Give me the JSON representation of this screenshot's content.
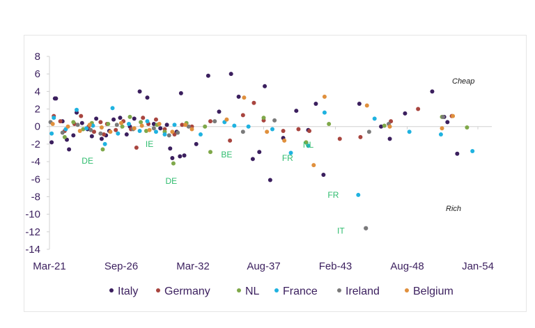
{
  "chart_data": {
    "type": "scatter",
    "title": "",
    "xlabel": "",
    "ylabel": "",
    "x_tick_labels": [
      "Mar-21",
      "Sep-26",
      "Mar-32",
      "Aug-37",
      "Feb-43",
      "Aug-48",
      "Jan-54"
    ],
    "x_ticks": [
      "2021-03",
      "2026-09",
      "2032-03",
      "2037-08",
      "2043-02",
      "2048-08",
      "2054-01"
    ],
    "xlim": [
      "2021-03",
      "2054-01"
    ],
    "ylim": [
      -14,
      8
    ],
    "y_ticks": [
      8,
      6,
      4,
      2,
      0,
      -2,
      -4,
      -6,
      -8,
      -10,
      -12,
      -14
    ],
    "grid": false,
    "legend_position": "bottom",
    "notes": {
      "cheap": "Cheap",
      "rich": "Rich"
    },
    "annotations": [
      {
        "text": "DE",
        "x": "2024-02",
        "y": -3.9
      },
      {
        "text": "IE",
        "x": "2028-11",
        "y": -2.0
      },
      {
        "text": "DE",
        "x": "2030-07",
        "y": -6.2
      },
      {
        "text": "BE",
        "x": "2034-10",
        "y": -3.2
      },
      {
        "text": "FR",
        "x": "2039-06",
        "y": -3.6
      },
      {
        "text": "NL",
        "x": "2041-01",
        "y": -2.1
      },
      {
        "text": "FR",
        "x": "2042-12",
        "y": -7.8
      },
      {
        "text": "IT",
        "x": "2043-07",
        "y": -11.9
      }
    ],
    "series": [
      {
        "name": "Italy",
        "color": "#3b1f5e",
        "points": [
          [
            "2021-05",
            -1.8
          ],
          [
            "2021-08",
            3.2
          ],
          [
            "2021-09",
            3.2
          ],
          [
            "2022-03",
            0.6
          ],
          [
            "2022-07",
            -1.5
          ],
          [
            "2022-09",
            -2.6
          ],
          [
            "2023-01",
            -1.0
          ],
          [
            "2023-04",
            1.6
          ],
          [
            "2023-09",
            0.4
          ],
          [
            "2024-02",
            -0.3
          ],
          [
            "2024-06",
            -1.1
          ],
          [
            "2024-10",
            0.9
          ],
          [
            "2025-03",
            -1.4
          ],
          [
            "2025-07",
            -1.0
          ],
          [
            "2025-10",
            -0.5
          ],
          [
            "2026-02",
            0.8
          ],
          [
            "2026-08",
            1.0
          ],
          [
            "2027-02",
            -0.9
          ],
          [
            "2027-05",
            0.0
          ],
          [
            "2027-09",
            0.9
          ],
          [
            "2028-02",
            4.0
          ],
          [
            "2028-09",
            3.3
          ],
          [
            "2029-03",
            0.3
          ],
          [
            "2029-09",
            -0.2
          ],
          [
            "2030-03",
            0.2
          ],
          [
            "2030-06",
            -2.5
          ],
          [
            "2030-08",
            -3.6
          ],
          [
            "2030-12",
            -0.6
          ],
          [
            "2031-03",
            -3.4
          ],
          [
            "2031-04",
            3.8
          ],
          [
            "2031-07",
            -3.3
          ],
          [
            "2032-06",
            -2.0
          ],
          [
            "2033-05",
            5.8
          ],
          [
            "2034-03",
            1.7
          ],
          [
            "2035-02",
            6.0
          ],
          [
            "2035-09",
            3.4
          ],
          [
            "2036-10",
            -3.7
          ],
          [
            "2037-04",
            -2.9
          ],
          [
            "2037-09",
            4.6
          ],
          [
            "2038-02",
            -6.1
          ],
          [
            "2039-02",
            -1.3
          ],
          [
            "2040-02",
            1.8
          ],
          [
            "2041-01",
            -0.4
          ],
          [
            "2041-08",
            2.6
          ],
          [
            "2042-03",
            -5.5
          ],
          [
            "2044-12",
            2.6
          ],
          [
            "2045-06",
            -11.6
          ],
          [
            "2046-08",
            0.0
          ],
          [
            "2047-04",
            -1.4
          ],
          [
            "2048-06",
            1.5
          ],
          [
            "2050-07",
            4.0
          ],
          [
            "2051-06",
            1.1
          ],
          [
            "2051-09",
            0.5
          ],
          [
            "2052-06",
            -3.1
          ]
        ]
      },
      {
        "name": "Germany",
        "color": "#a8453f",
        "points": [
          [
            "2021-07",
            1.2
          ],
          [
            "2022-01",
            0.6
          ],
          [
            "2022-05",
            -0.5
          ],
          [
            "2023-02",
            0.3
          ],
          [
            "2023-08",
            1.2
          ],
          [
            "2024-03",
            0.0
          ],
          [
            "2024-08",
            -0.6
          ],
          [
            "2025-02",
            0.5
          ],
          [
            "2025-05",
            -0.9
          ],
          [
            "2025-08",
            0.3
          ],
          [
            "2026-04",
            -0.4
          ],
          [
            "2026-11",
            0.6
          ],
          [
            "2027-06",
            -0.3
          ],
          [
            "2027-11",
            -2.4
          ],
          [
            "2028-05",
            1.0
          ],
          [
            "2028-10",
            0.3
          ],
          [
            "2029-05",
            0.8
          ],
          [
            "2030-01",
            -0.3
          ],
          [
            "2030-10",
            -0.9
          ],
          [
            "2031-05",
            0.2
          ],
          [
            "2032-02",
            0.0
          ],
          [
            "2033-07",
            0.6
          ],
          [
            "2035-01",
            -1.6
          ],
          [
            "2036-01",
            1.3
          ],
          [
            "2036-11",
            2.7
          ],
          [
            "2037-08",
            0.7
          ],
          [
            "2039-02",
            -0.5
          ],
          [
            "2040-04",
            -0.3
          ],
          [
            "2041-02",
            -0.5
          ],
          [
            "2043-06",
            -1.4
          ],
          [
            "2045-01",
            -1.2
          ],
          [
            "2047-05",
            0.6
          ],
          [
            "2049-06",
            2.0
          ],
          [
            "2052-01",
            1.2
          ]
        ]
      },
      {
        "name": "NL",
        "color": "#7fa84a",
        "points": [
          [
            "2022-05",
            -1.2
          ],
          [
            "2023-01",
            0.5
          ],
          [
            "2023-10",
            -0.3
          ],
          [
            "2024-06",
            0.4
          ],
          [
            "2025-04",
            -2.6
          ],
          [
            "2025-09",
            0.3
          ],
          [
            "2026-10",
            0.0
          ],
          [
            "2027-05",
            1.1
          ],
          [
            "2028-03",
            0.5
          ],
          [
            "2028-08",
            -0.5
          ],
          [
            "2029-06",
            0.2
          ],
          [
            "2030-01",
            -0.6
          ],
          [
            "2030-09",
            -4.2
          ],
          [
            "2031-09",
            0.4
          ],
          [
            "2033-02",
            0.0
          ],
          [
            "2033-07",
            -2.9
          ],
          [
            "2037-08",
            1.0
          ],
          [
            "2040-11",
            -1.8
          ],
          [
            "2042-08",
            0.3
          ],
          [
            "2046-11",
            0.1
          ],
          [
            "2051-04",
            1.1
          ],
          [
            "2053-03",
            -0.1
          ]
        ]
      },
      {
        "name": "France",
        "color": "#1fb2e0",
        "points": [
          [
            "2021-05",
            -0.8
          ],
          [
            "2021-07",
            1.0
          ],
          [
            "2022-06",
            -0.3
          ],
          [
            "2023-04",
            1.9
          ],
          [
            "2024-01",
            -0.2
          ],
          [
            "2024-07",
            0.1
          ],
          [
            "2025-06",
            -2.0
          ],
          [
            "2026-01",
            2.1
          ],
          [
            "2026-06",
            -0.8
          ],
          [
            "2027-04",
            0.3
          ],
          [
            "2028-02",
            -0.5
          ],
          [
            "2028-09",
            0.6
          ],
          [
            "2029-05",
            -0.6
          ],
          [
            "2030-01",
            -0.9
          ],
          [
            "2030-10",
            0.2
          ],
          [
            "2032-10",
            -0.9
          ],
          [
            "2034-08",
            0.5
          ],
          [
            "2035-05",
            0.1
          ],
          [
            "2036-06",
            0.0
          ],
          [
            "2038-04",
            -0.3
          ],
          [
            "2039-09",
            -3.0
          ],
          [
            "2041-01",
            -2.2
          ],
          [
            "2042-04",
            1.6
          ],
          [
            "2044-11",
            -7.8
          ],
          [
            "2046-02",
            0.9
          ],
          [
            "2048-10",
            -0.6
          ],
          [
            "2051-03",
            -0.9
          ],
          [
            "2053-08",
            -2.8
          ]
        ]
      },
      {
        "name": "Ireland",
        "color": "#7a7a7a",
        "points": [
          [
            "2021-04",
            0.5
          ],
          [
            "2022-03",
            -0.7
          ],
          [
            "2023-05",
            0.2
          ],
          [
            "2024-05",
            -0.4
          ],
          [
            "2025-02",
            -0.8
          ],
          [
            "2026-05",
            0.2
          ],
          [
            "2027-08",
            -0.3
          ],
          [
            "2029-03",
            -0.2
          ],
          [
            "2030-05",
            -1.0
          ],
          [
            "2031-01",
            -0.7
          ],
          [
            "2031-11",
            0.0
          ],
          [
            "2033-11",
            0.6
          ],
          [
            "2036-01",
            -0.6
          ],
          [
            "2038-06",
            0.7
          ],
          [
            "2045-09",
            -0.6
          ],
          [
            "2047-03",
            0.3
          ],
          [
            "2051-05",
            1.1
          ],
          [
            "2045-06",
            -11.6
          ]
        ]
      },
      {
        "name": "Belgium",
        "color": "#e0903d",
        "points": [
          [
            "2021-06",
            0.3
          ],
          [
            "2022-08",
            0.0
          ],
          [
            "2023-07",
            -0.5
          ],
          [
            "2024-04",
            0.2
          ],
          [
            "2025-03",
            -0.1
          ],
          [
            "2025-11",
            -0.6
          ],
          [
            "2026-09",
            0.4
          ],
          [
            "2027-09",
            -0.2
          ],
          [
            "2028-04",
            0.1
          ],
          [
            "2028-11",
            -0.4
          ],
          [
            "2029-08",
            0.3
          ],
          [
            "2030-08",
            -0.6
          ],
          [
            "2031-08",
            0.2
          ],
          [
            "2032-02",
            -0.3
          ],
          [
            "2034-10",
            0.8
          ],
          [
            "2036-02",
            3.3
          ],
          [
            "2037-11",
            -0.6
          ],
          [
            "2039-03",
            -1.6
          ],
          [
            "2041-06",
            -4.4
          ],
          [
            "2042-04",
            3.4
          ],
          [
            "2045-07",
            2.4
          ],
          [
            "2047-04",
            0.0
          ],
          [
            "2051-04",
            -0.2
          ],
          [
            "2052-02",
            1.2
          ]
        ]
      }
    ]
  }
}
